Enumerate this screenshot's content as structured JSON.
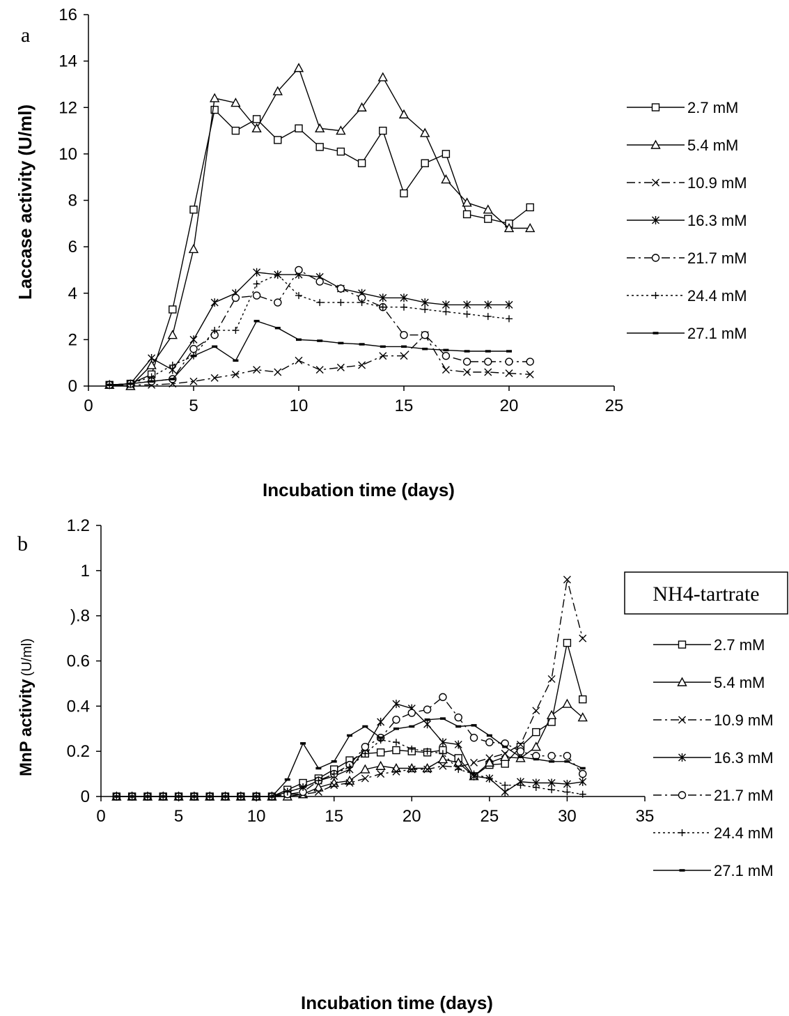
{
  "chart_data": [
    {
      "type": "line",
      "panel_letter": "a",
      "xlabel": "Incubation time (days)",
      "ylabel": "Laccase activity (U/ml)",
      "xlim": [
        0,
        25
      ],
      "ylim": [
        0,
        16
      ],
      "xticks": [
        "0",
        "5",
        "10",
        "15",
        "20",
        "25"
      ],
      "yticks": [
        "0",
        "2",
        "4",
        "6",
        "8",
        "10",
        "12",
        "14",
        "16"
      ],
      "grid": false,
      "legend_position": "right",
      "series": [
        {
          "name": "2.7 mM",
          "marker": "square",
          "dash": "solid",
          "x": [
            1,
            2,
            3,
            4,
            5,
            6,
            7,
            8,
            9,
            10,
            11,
            12,
            13,
            14,
            15,
            16,
            17,
            18,
            19,
            20,
            21
          ],
          "y": [
            0.05,
            0.1,
            0.5,
            3.3,
            7.6,
            11.9,
            11.0,
            11.5,
            10.6,
            11.1,
            10.3,
            10.1,
            9.6,
            11.0,
            8.3,
            9.6,
            10.0,
            7.4,
            7.2,
            7.0,
            7.7
          ]
        },
        {
          "name": "5.4 mM",
          "marker": "triangle",
          "dash": "solid",
          "x": [
            1,
            2,
            3,
            4,
            5,
            6,
            7,
            8,
            9,
            10,
            11,
            12,
            13,
            14,
            15,
            16,
            17,
            18,
            19,
            20,
            21
          ],
          "y": [
            0.05,
            0.0,
            0.9,
            2.2,
            5.9,
            12.4,
            12.2,
            11.1,
            12.7,
            13.7,
            11.1,
            11.0,
            12.0,
            13.3,
            11.7,
            10.9,
            8.9,
            7.9,
            7.6,
            6.8,
            6.8
          ]
        },
        {
          "name": "10.9 mM",
          "marker": "x",
          "dash": "dashdot",
          "x": [
            1,
            2,
            3,
            4,
            5,
            6,
            7,
            8,
            9,
            10,
            11,
            12,
            13,
            14,
            15,
            16,
            17,
            18,
            19,
            20,
            21
          ],
          "y": [
            0.05,
            0.05,
            0.05,
            0.1,
            0.2,
            0.35,
            0.5,
            0.7,
            0.6,
            1.1,
            0.7,
            0.8,
            0.9,
            1.3,
            1.3,
            2.2,
            0.7,
            0.6,
            0.6,
            0.55,
            0.5
          ]
        },
        {
          "name": "16.3 mM",
          "marker": "star",
          "dash": "solid",
          "x": [
            1,
            2,
            3,
            4,
            5,
            6,
            7,
            8,
            9,
            10,
            11,
            12,
            13,
            14,
            15,
            16,
            17,
            18,
            19,
            20
          ],
          "y": [
            0.05,
            0.1,
            1.2,
            0.7,
            2.0,
            3.6,
            4.0,
            4.9,
            4.8,
            4.8,
            4.7,
            4.2,
            4.0,
            3.8,
            3.8,
            3.6,
            3.5,
            3.5,
            3.5,
            3.5
          ]
        },
        {
          "name": "21.7 mM",
          "marker": "circle",
          "dash": "dashdot",
          "x": [
            1,
            2,
            3,
            4,
            5,
            6,
            7,
            8,
            9,
            10,
            11,
            12,
            13,
            14,
            15,
            16,
            17,
            18,
            19,
            20,
            21
          ],
          "y": [
            0.05,
            0.1,
            0.2,
            0.3,
            1.6,
            2.2,
            3.8,
            3.9,
            3.6,
            5.0,
            4.5,
            4.2,
            3.8,
            3.4,
            2.2,
            2.2,
            1.3,
            1.05,
            1.05,
            1.05,
            1.05
          ]
        },
        {
          "name": "24.4 mM",
          "marker": "plus",
          "dash": "dotted",
          "x": [
            1,
            2,
            3,
            4,
            5,
            6,
            7,
            8,
            9,
            10,
            11,
            12,
            13,
            14,
            15,
            16,
            17,
            18,
            19,
            20
          ],
          "y": [
            0.05,
            0.1,
            0.4,
            0.9,
            1.3,
            2.4,
            2.4,
            4.4,
            4.8,
            3.9,
            3.6,
            3.6,
            3.6,
            3.4,
            3.4,
            3.3,
            3.2,
            3.1,
            3.0,
            2.9
          ]
        },
        {
          "name": "27.1 mM",
          "marker": "dash",
          "dash": "solid",
          "x": [
            1,
            2,
            3,
            4,
            5,
            6,
            7,
            8,
            9,
            10,
            11,
            12,
            13,
            14,
            15,
            16,
            17,
            18,
            19,
            20
          ],
          "y": [
            0.05,
            0.1,
            0.2,
            0.3,
            1.3,
            1.7,
            1.1,
            2.8,
            2.5,
            2.0,
            1.95,
            1.85,
            1.8,
            1.7,
            1.7,
            1.6,
            1.55,
            1.5,
            1.5,
            1.5
          ]
        }
      ]
    },
    {
      "type": "line",
      "panel_letter": "b",
      "legend_title": "NH4-tartrate",
      "xlabel": "Incubation time (days)",
      "ylabel_bold": "MnP activity",
      "ylabel_units": "(U/ml)",
      "xlim": [
        0,
        35
      ],
      "ylim": [
        0,
        1.2
      ],
      "xticks": [
        "0",
        "5",
        "10",
        "15",
        "20",
        "25",
        "30",
        "35"
      ],
      "yticks": [
        "0",
        "0.2",
        "0.4",
        "0.6",
        ").8",
        "1",
        "1.2"
      ],
      "grid": false,
      "legend_position": "right",
      "series": [
        {
          "name": "2.7 mM",
          "marker": "square",
          "dash": "solid",
          "x": [
            1,
            2,
            3,
            4,
            5,
            6,
            7,
            8,
            9,
            10,
            11,
            12,
            13,
            14,
            15,
            16,
            17,
            18,
            19,
            20,
            21,
            22,
            23,
            24,
            25,
            26,
            27,
            28,
            29,
            30,
            31
          ],
          "y": [
            0,
            0,
            0,
            0,
            0,
            0,
            0,
            0,
            0,
            0,
            0,
            0.03,
            0.06,
            0.08,
            0.12,
            0.16,
            0.19,
            0.195,
            0.205,
            0.2,
            0.195,
            0.205,
            0.17,
            0.09,
            0.14,
            0.145,
            0.22,
            0.285,
            0.33,
            0.68,
            0.43
          ]
        },
        {
          "name": "5.4 mM",
          "marker": "triangle",
          "dash": "solid",
          "x": [
            1,
            2,
            3,
            4,
            5,
            6,
            7,
            8,
            9,
            10,
            11,
            12,
            13,
            14,
            15,
            16,
            17,
            18,
            19,
            20,
            21,
            22,
            23,
            24,
            25,
            26,
            27,
            28,
            29,
            30,
            31
          ],
          "y": [
            0,
            0,
            0,
            0,
            0,
            0,
            0,
            0,
            0,
            0,
            0,
            0.0,
            0.01,
            0.04,
            0.06,
            0.07,
            0.12,
            0.135,
            0.125,
            0.125,
            0.125,
            0.165,
            0.15,
            0.09,
            0.15,
            0.175,
            0.17,
            0.22,
            0.36,
            0.41,
            0.35
          ]
        },
        {
          "name": "10.9 mM",
          "marker": "x",
          "dash": "dashdot",
          "x": [
            1,
            2,
            3,
            4,
            5,
            6,
            7,
            8,
            9,
            10,
            11,
            12,
            13,
            14,
            15,
            16,
            17,
            18,
            19,
            20,
            21,
            22,
            23,
            24,
            25,
            26,
            27,
            28,
            29,
            30,
            31
          ],
          "y": [
            0,
            0,
            0,
            0,
            0,
            0,
            0,
            0,
            0,
            0,
            0,
            0.01,
            0.01,
            0.02,
            0.05,
            0.06,
            0.08,
            0.1,
            0.11,
            0.12,
            0.12,
            0.135,
            0.13,
            0.15,
            0.17,
            0.19,
            0.23,
            0.38,
            0.52,
            0.96,
            0.7
          ]
        },
        {
          "name": "16.3 mM",
          "marker": "star",
          "dash": "solid",
          "x": [
            1,
            2,
            3,
            4,
            5,
            6,
            7,
            8,
            9,
            10,
            11,
            12,
            13,
            14,
            15,
            16,
            17,
            18,
            19,
            20,
            21,
            22,
            23,
            24,
            25,
            26,
            27,
            28,
            29,
            30,
            31
          ],
          "y": [
            0,
            0,
            0,
            0,
            0,
            0,
            0,
            0,
            0,
            0,
            0,
            0.02,
            0.04,
            0.07,
            0.09,
            0.12,
            0.21,
            0.33,
            0.41,
            0.39,
            0.32,
            0.24,
            0.23,
            0.09,
            0.08,
            0.02,
            0.065,
            0.06,
            0.06,
            0.055,
            0.065
          ]
        },
        {
          "name": "21.7 mM",
          "marker": "circle",
          "dash": "dashdot",
          "x": [
            1,
            2,
            3,
            4,
            5,
            6,
            7,
            8,
            9,
            10,
            11,
            12,
            13,
            14,
            15,
            16,
            17,
            18,
            19,
            20,
            21,
            22,
            23,
            24,
            25,
            26,
            27,
            28,
            29,
            30,
            31
          ],
          "y": [
            0,
            0,
            0,
            0,
            0,
            0,
            0,
            0,
            0,
            0,
            0,
            0.01,
            0.02,
            0.07,
            0.1,
            0.14,
            0.22,
            0.26,
            0.34,
            0.37,
            0.385,
            0.44,
            0.35,
            0.26,
            0.24,
            0.235,
            0.2,
            0.18,
            0.18,
            0.18,
            0.1
          ]
        },
        {
          "name": "24.4 mM",
          "marker": "plus",
          "dash": "dotted",
          "x": [
            1,
            2,
            3,
            4,
            5,
            6,
            7,
            8,
            9,
            10,
            11,
            12,
            13,
            14,
            15,
            16,
            17,
            18,
            19,
            20,
            21,
            22,
            23,
            24,
            25,
            26,
            27,
            28,
            29,
            30,
            31
          ],
          "y": [
            0,
            0,
            0,
            0,
            0,
            0,
            0,
            0,
            0,
            0,
            0,
            0.02,
            0.04,
            0.07,
            0.1,
            0.13,
            0.19,
            0.25,
            0.24,
            0.21,
            0.2,
            0.19,
            0.12,
            0.1,
            0.08,
            0.05,
            0.05,
            0.04,
            0.03,
            0.02,
            0.01
          ]
        },
        {
          "name": "27.1 mM",
          "marker": "dash",
          "dash": "solid",
          "x": [
            1,
            2,
            3,
            4,
            5,
            6,
            7,
            8,
            9,
            10,
            11,
            12,
            13,
            14,
            15,
            16,
            17,
            18,
            19,
            20,
            21,
            22,
            23,
            24,
            25,
            26,
            27,
            28,
            29,
            30,
            31
          ],
          "y": [
            0,
            0,
            0,
            0,
            0,
            0,
            0,
            0,
            0,
            0,
            0,
            0.075,
            0.235,
            0.125,
            0.155,
            0.27,
            0.31,
            0.26,
            0.3,
            0.31,
            0.34,
            0.345,
            0.31,
            0.315,
            0.27,
            0.22,
            0.175,
            0.165,
            0.155,
            0.155,
            0.125
          ]
        }
      ]
    }
  ]
}
